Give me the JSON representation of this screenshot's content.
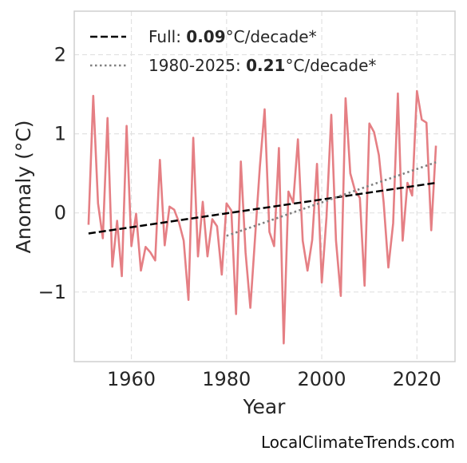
{
  "chart_data": {
    "type": "line",
    "title": "",
    "xlabel": "Year",
    "ylabel": "Anomaly (°C)",
    "xlim": [
      1948,
      2028
    ],
    "ylim": [
      -1.88,
      2.55
    ],
    "xticks": [
      1960,
      1980,
      2000,
      2020
    ],
    "yticks": [
      -1,
      0,
      1,
      2
    ],
    "ytick_labels": [
      "−1",
      "0",
      "1",
      "2"
    ],
    "grid": true,
    "legend_position": "top-left",
    "series": [
      {
        "color": "#e57f84",
        "x": [
          1951,
          1952,
          1953,
          1954,
          1955,
          1956,
          1957,
          1958,
          1959,
          1960,
          1961,
          1962,
          1963,
          1964,
          1965,
          1966,
          1967,
          1968,
          1969,
          1970,
          1971,
          1972,
          1973,
          1974,
          1975,
          1976,
          1977,
          1978,
          1979,
          1980,
          1981,
          1982,
          1983,
          1984,
          1985,
          1986,
          1987,
          1988,
          1989,
          1990,
          1991,
          1992,
          1993,
          1994,
          1995,
          1996,
          1997,
          1998,
          1999,
          2000,
          2001,
          2002,
          2003,
          2004,
          2005,
          2006,
          2007,
          2008,
          2009,
          2010,
          2011,
          2012,
          2013,
          2014,
          2015,
          2016,
          2017,
          2018,
          2019,
          2020,
          2021,
          2022,
          2023,
          2024
        ],
        "values": [
          -0.15,
          1.48,
          0.12,
          -0.32,
          1.2,
          -0.68,
          -0.1,
          -0.8,
          1.1,
          -0.42,
          -0.01,
          -0.73,
          -0.43,
          -0.5,
          -0.6,
          0.67,
          -0.41,
          0.08,
          0.04,
          -0.12,
          -0.35,
          -1.1,
          0.95,
          -0.55,
          0.14,
          -0.55,
          -0.08,
          -0.17,
          -0.78,
          0.12,
          0.03,
          -1.28,
          0.65,
          -0.5,
          -1.2,
          -0.3,
          0.58,
          1.31,
          -0.24,
          -0.42,
          0.82,
          -1.65,
          0.27,
          0.13,
          0.93,
          -0.35,
          -0.73,
          -0.34,
          0.62,
          -0.88,
          -0.05,
          1.24,
          -0.35,
          -1.05,
          1.45,
          0.5,
          0.28,
          0.19,
          -0.92,
          1.13,
          1.02,
          0.73,
          0.13,
          -0.69,
          -0.13,
          1.51,
          -0.35,
          0.38,
          0.22,
          1.54,
          1.18,
          1.14,
          -0.22,
          0.85
        ]
      }
    ],
    "trends": [
      {
        "name": "Full",
        "style": "dashed",
        "color": "#000000",
        "x": [
          1951,
          2024
        ],
        "values": [
          -0.26,
          0.38
        ]
      },
      {
        "name": "1980-2025",
        "style": "dotted",
        "color": "#808080",
        "x": [
          1980,
          2024
        ],
        "values": [
          -0.29,
          0.64
        ]
      }
    ],
    "legend": [
      {
        "prefix": "Full: ",
        "value": "0.09",
        "suffix": "°C/decade*",
        "style": "dashed",
        "color": "#000000"
      },
      {
        "prefix": "1980-2025: ",
        "value": "0.21",
        "suffix": "°C/decade*",
        "style": "dotted",
        "color": "#808080"
      }
    ]
  },
  "credit": "LocalClimateTrends.com"
}
